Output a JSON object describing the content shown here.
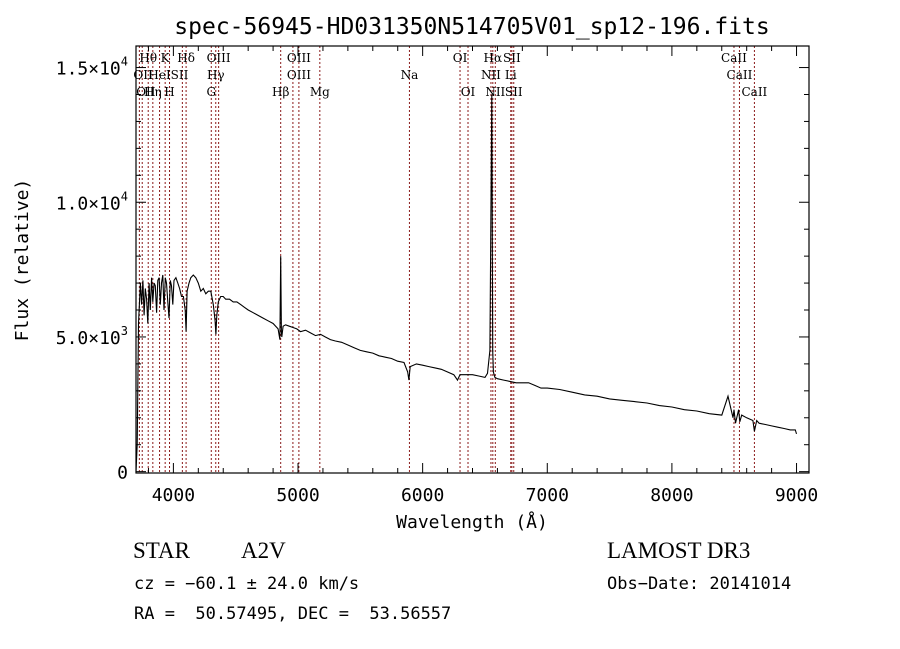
{
  "chart_data": {
    "type": "line",
    "title": "spec-56945-HD031350N514705V01_sp12-196.fits",
    "xlabel": "Wavelength (Å)",
    "ylabel": "Flux (relative)",
    "xlim": [
      3700,
      9100
    ],
    "ylim": [
      -50,
      15800
    ],
    "x_ticks": [
      {
        "value": 4000,
        "label": "4000"
      },
      {
        "value": 5000,
        "label": "5000"
      },
      {
        "value": 6000,
        "label": "6000"
      },
      {
        "value": 7000,
        "label": "7000"
      },
      {
        "value": 8000,
        "label": "8000"
      },
      {
        "value": 9000,
        "label": "9000"
      }
    ],
    "y_ticks": [
      {
        "value": 0,
        "mantissa": "0",
        "exponent": ""
      },
      {
        "value": 5000,
        "mantissa": "5.0×10",
        "exponent": "3"
      },
      {
        "value": 10000,
        "mantissa": "1.0×10",
        "exponent": "4"
      },
      {
        "value": 15000,
        "mantissa": "1.5×10",
        "exponent": "4"
      }
    ],
    "series": [
      {
        "name": "spectrum",
        "x": [
          3700,
          3710,
          3720,
          3735,
          3745,
          3755,
          3765,
          3775,
          3785,
          3795,
          3805,
          3815,
          3825,
          3835,
          3845,
          3855,
          3865,
          3875,
          3885,
          3895,
          3905,
          3915,
          3925,
          3935,
          3945,
          3955,
          3965,
          3975,
          3985,
          3995,
          4005,
          4020,
          4035,
          4050,
          4065,
          4080,
          4095,
          4102,
          4110,
          4125,
          4140,
          4160,
          4180,
          4200,
          4220,
          4240,
          4260,
          4280,
          4300,
          4320,
          4335,
          4341,
          4348,
          4360,
          4380,
          4400,
          4420,
          4450,
          4480,
          4510,
          4540,
          4570,
          4600,
          4640,
          4680,
          4720,
          4760,
          4800,
          4840,
          4855,
          4861,
          4867,
          4870,
          4880,
          4900,
          4930,
          4960,
          4990,
          5020,
          5060,
          5100,
          5140,
          5180,
          5220,
          5260,
          5300,
          5350,
          5400,
          5450,
          5500,
          5550,
          5600,
          5650,
          5700,
          5750,
          5800,
          5850,
          5880,
          5890,
          5900,
          5950,
          6000,
          6050,
          6100,
          6150,
          6200,
          6250,
          6280,
          6300,
          6320,
          6350,
          6400,
          6450,
          6500,
          6520,
          6540,
          6555,
          6562,
          6568,
          6580,
          6600,
          6650,
          6700,
          6750,
          6800,
          6850,
          6900,
          6950,
          7000,
          7100,
          7200,
          7300,
          7400,
          7500,
          7600,
          7700,
          7800,
          7900,
          8000,
          8100,
          8200,
          8300,
          8400,
          8450,
          8490,
          8498,
          8510,
          8535,
          8545,
          8560,
          8600,
          8650,
          8662,
          8680,
          8700,
          8750,
          8800,
          8850,
          8900,
          8950,
          8990,
          9000
        ],
        "y": [
          0,
          1000,
          5500,
          7000,
          6200,
          7100,
          5800,
          6800,
          6400,
          5500,
          7000,
          6000,
          7200,
          6300,
          7000,
          6900,
          5900,
          7100,
          7200,
          6200,
          7000,
          7300,
          6000,
          7200,
          7000,
          6300,
          5700,
          7100,
          6900,
          6200,
          7100,
          7200,
          7000,
          6800,
          6500,
          6500,
          6000,
          5200,
          6700,
          7000,
          7200,
          7300,
          7200,
          7000,
          6700,
          6800,
          6600,
          6700,
          6700,
          6200,
          5600,
          5100,
          5800,
          6300,
          6500,
          6500,
          6400,
          6400,
          6300,
          6300,
          6200,
          6100,
          6000,
          5900,
          5800,
          5700,
          5600,
          5500,
          5300,
          4900,
          8000,
          5200,
          5000,
          5400,
          5450,
          5400,
          5350,
          5300,
          5200,
          5250,
          5150,
          5050,
          5100,
          5000,
          4900,
          4850,
          4800,
          4700,
          4600,
          4500,
          4450,
          4400,
          4300,
          4250,
          4200,
          4100,
          4050,
          3700,
          3400,
          3900,
          4000,
          3950,
          3900,
          3850,
          3800,
          3700,
          3600,
          3400,
          3600,
          3600,
          3600,
          3600,
          3550,
          3500,
          3650,
          4500,
          14000,
          4500,
          3700,
          3500,
          3450,
          3400,
          3350,
          3300,
          3300,
          3300,
          3200,
          3100,
          3100,
          3050,
          2950,
          2850,
          2800,
          2700,
          2650,
          2600,
          2550,
          2450,
          2400,
          2300,
          2250,
          2150,
          2100,
          2800,
          2000,
          2300,
          1800,
          2300,
          1850,
          2100,
          2000,
          1900,
          1500,
          1900,
          1800,
          1750,
          1700,
          1650,
          1600,
          1550,
          1550,
          1400
        ]
      }
    ],
    "lines": [
      {
        "w": 3727,
        "label": "OII",
        "row": 2,
        "side": "right"
      },
      {
        "w": 3750,
        "label": "OII",
        "row": 3,
        "side": "right"
      },
      {
        "w": 3798,
        "label": "Hθ",
        "row": 1,
        "side": "center"
      },
      {
        "w": 3835,
        "label": "Hη",
        "row": 3,
        "side": "center"
      },
      {
        "w": 3889,
        "label": "HeI",
        "row": 2,
        "side": "center"
      },
      {
        "w": 3934,
        "label": "K",
        "row": 1,
        "side": "center"
      },
      {
        "w": 3969,
        "label": "H",
        "row": 3,
        "side": "center"
      },
      {
        "w": 4072,
        "label": "SII",
        "row": 2,
        "side": "left"
      },
      {
        "w": 4102,
        "label": "Hδ",
        "row": 1,
        "side": "center"
      },
      {
        "w": 4304,
        "label": "G",
        "row": 3,
        "side": "center"
      },
      {
        "w": 4340,
        "label": "Hγ",
        "row": 2,
        "side": "center"
      },
      {
        "w": 4363,
        "label": "OIII",
        "row": 1,
        "side": "center"
      },
      {
        "w": 4861,
        "label": "Hβ",
        "row": 3,
        "side": "center"
      },
      {
        "w": 4959,
        "label": "OIII",
        "row": 2,
        "side": "right"
      },
      {
        "w": 5007,
        "label": "OIII",
        "row": 1,
        "side": "center"
      },
      {
        "w": 5175,
        "label": "Mg",
        "row": 3,
        "side": "center"
      },
      {
        "w": 5894,
        "label": "Na",
        "row": 2,
        "side": "center"
      },
      {
        "w": 6300,
        "label": "OI",
        "row": 1,
        "side": "center"
      },
      {
        "w": 6364,
        "label": "OI",
        "row": 3,
        "side": "center"
      },
      {
        "w": 6548,
        "label": "NII",
        "row": 2,
        "side": "center"
      },
      {
        "w": 6563,
        "label": "Hα",
        "row": 1,
        "side": "center"
      },
      {
        "w": 6583,
        "label": "NII",
        "row": 3,
        "side": "center"
      },
      {
        "w": 6707,
        "label": "Li",
        "row": 2,
        "side": "center"
      },
      {
        "w": 6716,
        "label": "SII",
        "row": 1,
        "side": "center"
      },
      {
        "w": 6731,
        "label": "SII",
        "row": 3,
        "side": "center"
      },
      {
        "w": 8498,
        "label": "CaII",
        "row": 1,
        "side": "center"
      },
      {
        "w": 8542,
        "label": "CaII",
        "row": 2,
        "side": "center"
      },
      {
        "w": 8662,
        "label": "CaII",
        "row": 3,
        "side": "center"
      }
    ]
  },
  "info": {
    "object_class": "STAR",
    "subclass": "A2V",
    "survey": "LAMOST DR3",
    "cz": "cz = −60.1 ± 24.0 km/s",
    "obs_date": "Obs−Date: 20141014",
    "coords": "RA =  50.57495, DEC =  53.56557"
  },
  "colors": {
    "line_marker": "#8b1a1a",
    "spectrum": "#000000",
    "axis": "#000000",
    "background": "#ffffff"
  }
}
